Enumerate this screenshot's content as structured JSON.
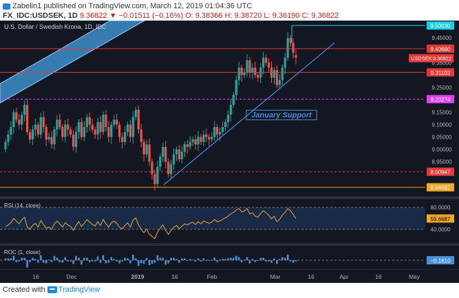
{
  "header": {
    "author": "Zabelin1",
    "published_text": "published on TradingView.com, March 12, 2019 01:04:36 UTC",
    "symbol": "FX_IDC:USDSEK, 1D",
    "close_value": "9.36822",
    "change_text": "▼ −0.01511 (−0.16%)",
    "ohlc_text": "O: 9.38366  H: 9.38720  L: 9.36190  C: 9.36822"
  },
  "footer": {
    "created_with": "Created with",
    "brand": "TradingView"
  },
  "colors": {
    "panel_bg": "#131722",
    "up_candle": "#26a69a",
    "down_candle": "#ef5350",
    "channel_fill": "#3d8ec9",
    "support_line": "#3f8fe0",
    "red_level": "#e53935",
    "orange_level": "#f5a623",
    "magenta_level": "#e040fb",
    "cyan_level": "#18d0e8",
    "rsi_line": "#f5a623",
    "roc_bar": "#4a90d9"
  },
  "chart_data": {
    "type": "candlestick",
    "title": "U.S. Dollar / Swedish Krona, 1D, IDC",
    "ylim": [
      8.81,
      9.52
    ],
    "y_ticks": [
      "9.45000",
      "9.40000",
      "9.35000",
      "9.30000",
      "9.25000",
      "9.20000",
      "9.15000",
      "9.10000",
      "9.05000",
      "9.00000",
      "8.95000",
      "8.90000"
    ],
    "x_ticks": [
      "16",
      "Dec",
      "2019",
      "16",
      "Feb",
      "Mar",
      "16",
      "Apr",
      "16",
      "May"
    ],
    "annotation": "January Support",
    "price_levels": [
      {
        "label": "9.50030",
        "value": 9.5003,
        "style": "cyan"
      },
      {
        "label": "9.40660",
        "value": 9.4066,
        "style": "red"
      },
      {
        "label": "9.31102",
        "value": 9.31102,
        "style": "red"
      },
      {
        "label": "9.20274",
        "value": 9.20274,
        "style": "magenta"
      },
      {
        "label": "8.90947",
        "value": 8.90947,
        "style": "red-dashed"
      },
      {
        "label": "8.84692",
        "value": 8.84692,
        "style": "orange"
      }
    ],
    "current_price": {
      "label": "USDSEK",
      "value": "9.36822"
    },
    "closes": [
      9.03,
      9.06,
      9.09,
      9.15,
      9.12,
      9.1,
      9.14,
      9.18,
      9.07,
      9.04,
      9.08,
      9.1,
      9.06,
      9.13,
      9.09,
      9.04,
      9.05,
      9.02,
      9.08,
      9.12,
      9.09,
      9.05,
      9.1,
      9.08,
      9.06,
      9.01,
      9.07,
      9.11,
      9.05,
      9.09,
      9.13,
      9.1,
      9.08,
      9.06,
      9.11,
      9.07,
      9.14,
      9.09,
      9.05,
      9.1,
      9.12,
      9.1,
      9.05,
      9.03,
      9.07,
      9.1,
      9.05,
      9.13,
      9.16,
      9.08,
      9.03,
      8.98,
      9.02,
      8.95,
      8.9,
      8.86,
      8.93,
      8.97,
      9.01,
      8.95,
      8.9,
      8.94,
      8.98,
      9.0,
      8.96,
      8.99,
      9.02,
      9.01,
      9.03,
      9.04,
      9.02,
      9.05,
      9.03,
      9.06,
      9.05,
      9.04,
      9.05,
      9.09,
      9.06,
      9.07,
      9.09,
      9.11,
      9.14,
      9.18,
      9.22,
      9.28,
      9.33,
      9.3,
      9.31,
      9.36,
      9.31,
      9.33,
      9.3,
      9.29,
      9.33,
      9.37,
      9.35,
      9.33,
      9.29,
      9.32,
      9.26,
      9.28,
      9.33,
      9.37,
      9.45,
      9.43,
      9.39,
      9.37
    ],
    "opens": [
      9.0,
      9.03,
      9.06,
      9.09,
      9.15,
      9.12,
      9.1,
      9.14,
      9.18,
      9.07,
      9.04,
      9.08,
      9.1,
      9.06,
      9.13,
      9.09,
      9.04,
      9.05,
      9.02,
      9.08,
      9.12,
      9.09,
      9.05,
      9.1,
      9.08,
      9.06,
      9.01,
      9.07,
      9.11,
      9.05,
      9.09,
      9.13,
      9.1,
      9.08,
      9.06,
      9.11,
      9.07,
      9.14,
      9.09,
      9.05,
      9.1,
      9.12,
      9.1,
      9.05,
      9.03,
      9.07,
      9.1,
      9.05,
      9.13,
      9.16,
      9.08,
      9.03,
      8.98,
      9.02,
      8.95,
      8.9,
      8.86,
      8.93,
      8.97,
      9.01,
      8.95,
      8.9,
      8.94,
      8.98,
      9.0,
      8.96,
      8.99,
      9.02,
      9.01,
      9.03,
      9.04,
      9.02,
      9.05,
      9.03,
      9.06,
      9.05,
      9.04,
      9.05,
      9.09,
      9.06,
      9.07,
      9.09,
      9.11,
      9.14,
      9.18,
      9.22,
      9.28,
      9.33,
      9.3,
      9.31,
      9.36,
      9.31,
      9.33,
      9.3,
      9.29,
      9.33,
      9.37,
      9.35,
      9.33,
      9.29,
      9.32,
      9.26,
      9.28,
      9.33,
      9.37,
      9.45,
      9.43,
      9.38
    ],
    "rsi": {
      "label": "RSI (14, close)",
      "current": "59.6687",
      "scale_labels": [
        "80.0000",
        "40.0000"
      ],
      "values": [
        45,
        48,
        52,
        60,
        55,
        50,
        57,
        62,
        44,
        40,
        47,
        51,
        44,
        56,
        49,
        42,
        44,
        40,
        50,
        55,
        50,
        44,
        52,
        48,
        45,
        38,
        47,
        54,
        45,
        51,
        58,
        53,
        49,
        46,
        54,
        47,
        58,
        50,
        44,
        52,
        55,
        51,
        44,
        41,
        47,
        52,
        44,
        57,
        61,
        48,
        40,
        34,
        41,
        31,
        27,
        23,
        35,
        42,
        48,
        38,
        31,
        38,
        44,
        47,
        41,
        46,
        50,
        48,
        51,
        53,
        49,
        54,
        50,
        55,
        53,
        51,
        53,
        58,
        54,
        55,
        58,
        61,
        64,
        68,
        71,
        75,
        78,
        72,
        73,
        78,
        68,
        70,
        64,
        62,
        69,
        74,
        70,
        66,
        59,
        64,
        54,
        58,
        66,
        71,
        78,
        74,
        67,
        60
      ]
    },
    "roc": {
      "label": "ROC (1, close)",
      "current": "−0.1610",
      "values": [
        0.3,
        0.3,
        0.3,
        0.7,
        -0.3,
        -0.2,
        0.4,
        0.4,
        -1.2,
        -0.3,
        0.4,
        0.2,
        -0.4,
        0.8,
        -0.4,
        -0.5,
        0.1,
        -0.3,
        0.7,
        0.4,
        -0.3,
        -0.4,
        0.5,
        -0.2,
        -0.2,
        -0.6,
        0.7,
        0.4,
        -0.7,
        0.4,
        0.4,
        -0.3,
        -0.2,
        -0.2,
        0.6,
        -0.4,
        0.8,
        -0.5,
        -0.4,
        0.5,
        0.2,
        -0.2,
        -0.5,
        -0.2,
        0.4,
        0.3,
        -0.5,
        0.9,
        0.3,
        -0.9,
        -0.5,
        -0.6,
        0.4,
        -0.8,
        -0.6,
        -0.4,
        0.8,
        0.4,
        0.4,
        -0.7,
        -0.5,
        0.4,
        0.4,
        0.2,
        -0.4,
        0.3,
        0.3,
        -0.1,
        0.2,
        0.1,
        -0.2,
        0.3,
        -0.2,
        0.3,
        -0.1,
        -0.1,
        0.1,
        0.4,
        -0.3,
        0.1,
        0.2,
        0.2,
        0.3,
        0.4,
        0.4,
        0.7,
        0.5,
        -0.3,
        0.1,
        0.5,
        -0.5,
        0.2,
        -0.3,
        -0.1,
        0.4,
        0.4,
        -0.2,
        -0.2,
        -0.4,
        0.3,
        -0.6,
        0.2,
        0.5,
        0.4,
        0.9,
        -0.2,
        -0.4,
        -0.2
      ]
    }
  }
}
